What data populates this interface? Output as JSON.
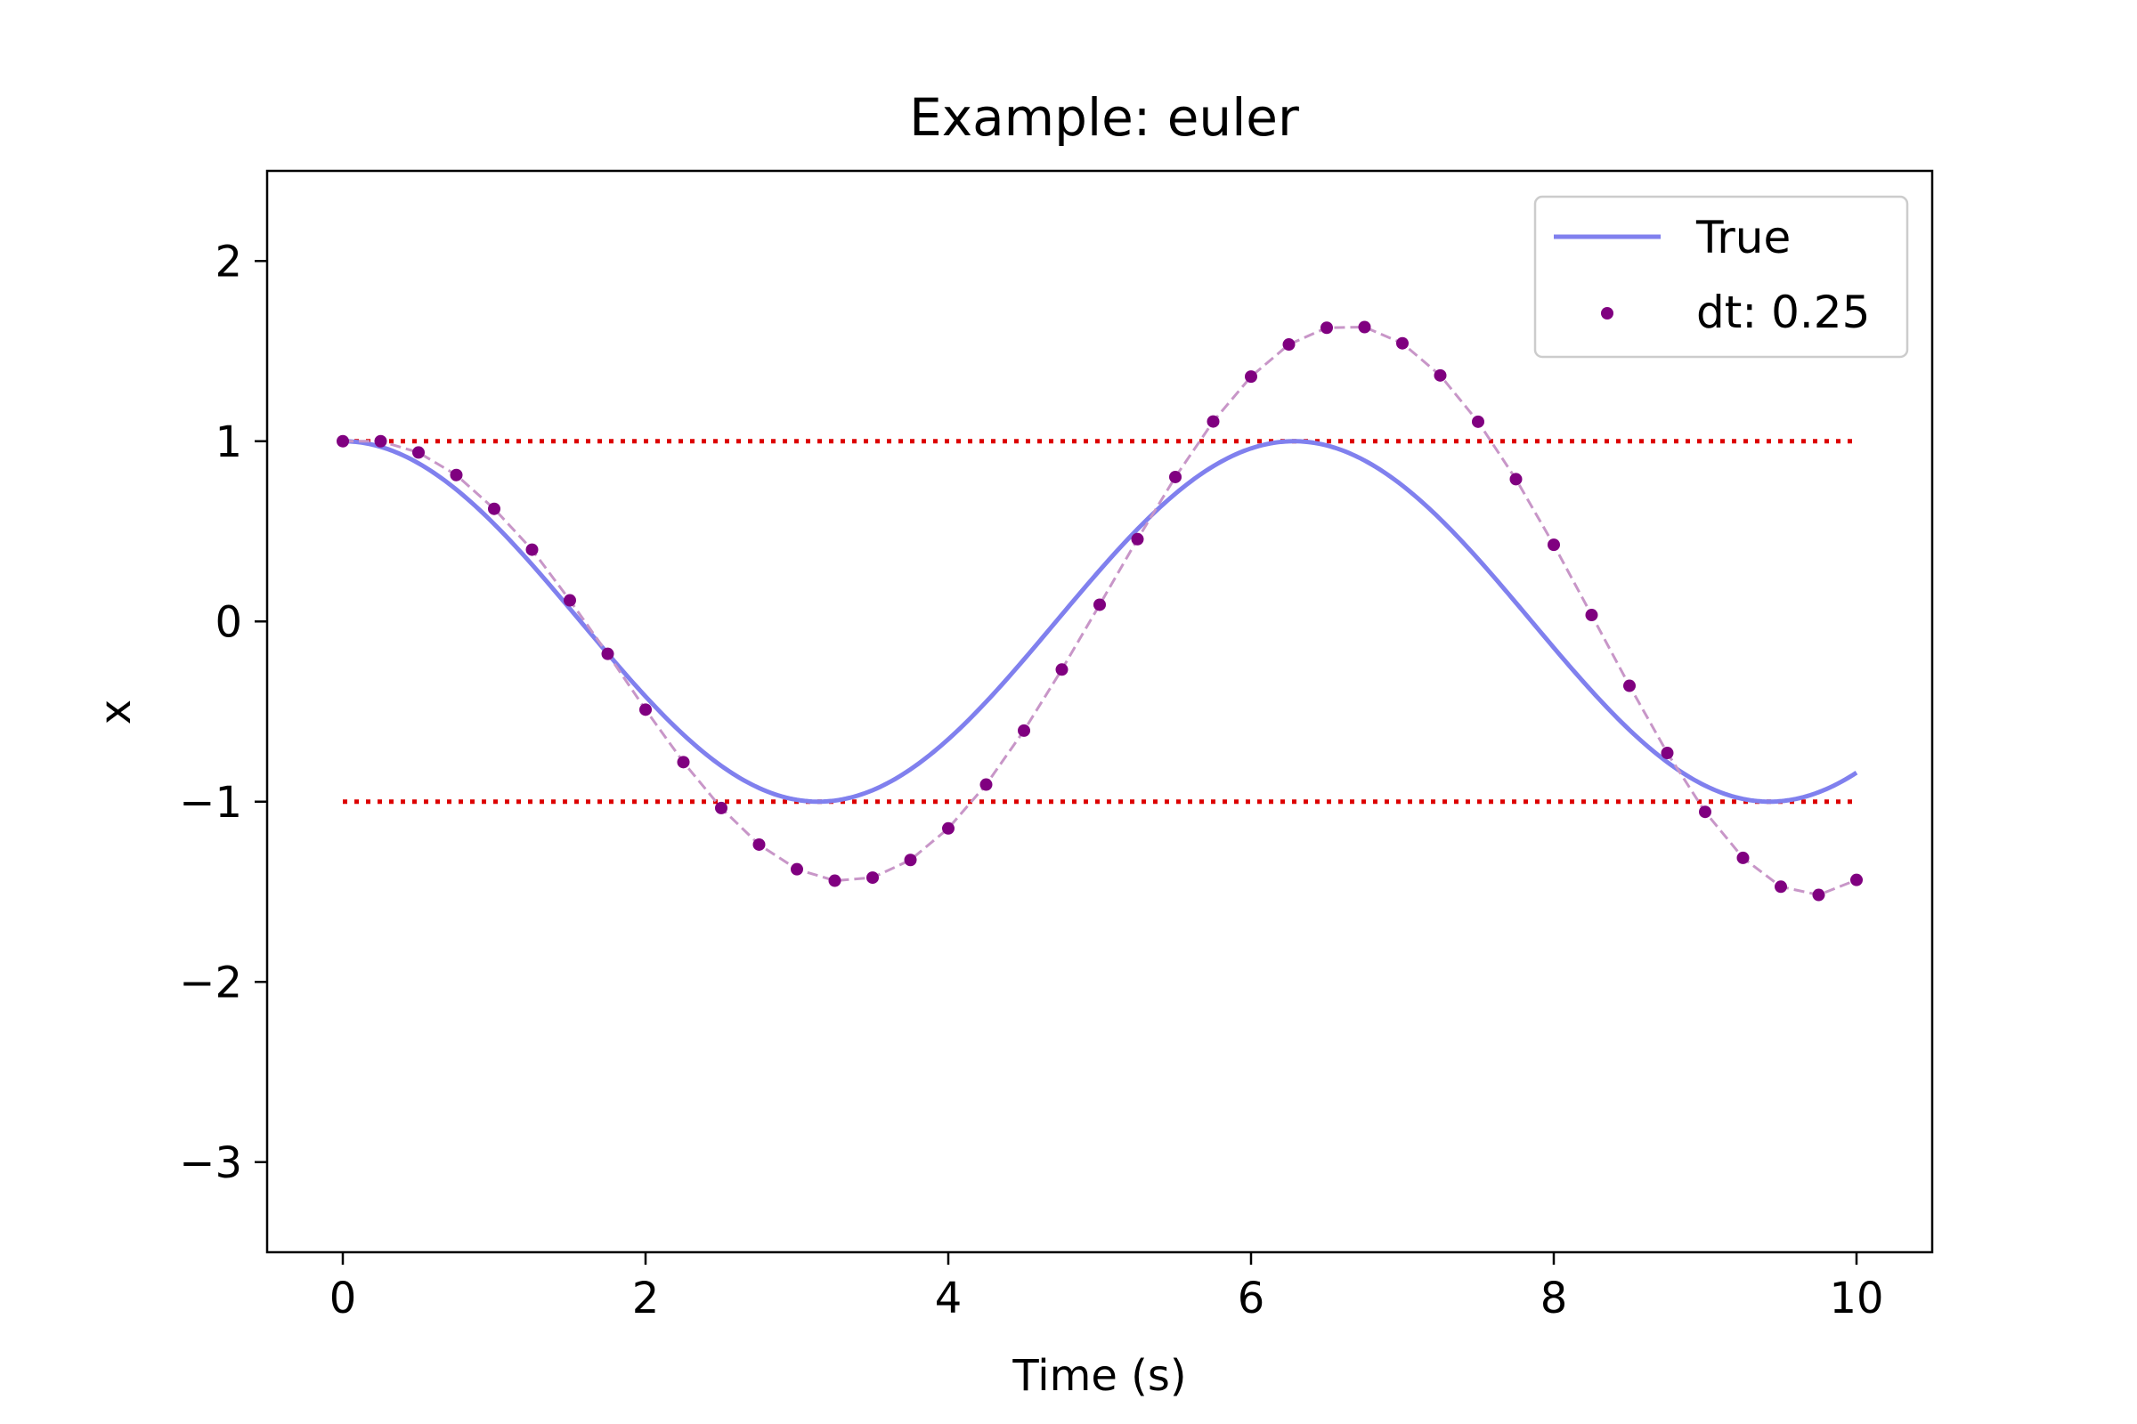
{
  "chart_data": {
    "type": "line",
    "title": "Example: euler",
    "xlabel": "Time (s)",
    "ylabel": "x",
    "xlim": [
      -0.5,
      10.5
    ],
    "ylim": [
      -3.5,
      2.5
    ],
    "xticks": [
      0,
      2,
      4,
      6,
      8,
      10
    ],
    "yticks": [
      -3,
      -2,
      -1,
      0,
      1,
      2
    ],
    "xtick_labels": [
      "0",
      "2",
      "4",
      "6",
      "8",
      "10"
    ],
    "ytick_labels": [
      "−3",
      "−2",
      "−1",
      "0",
      "1",
      "2"
    ],
    "grid": false,
    "legend": {
      "position": "top-right",
      "entries": [
        "True",
        "dt: 0.25"
      ]
    },
    "series": [
      {
        "name": "True",
        "style": "solid line",
        "color": "#8080ee",
        "function": "cos(t)",
        "x_range": [
          0,
          10
        ]
      },
      {
        "name": "dt: 0.25",
        "style": "markers + dashed line",
        "color": "#800080",
        "line_color": "#c896c8",
        "x": [
          0,
          0.25,
          0.5,
          0.75,
          1.0,
          1.25,
          1.5,
          1.75,
          2.0,
          2.25,
          2.5,
          2.75,
          3.0,
          3.25,
          3.5,
          3.75,
          4.0,
          4.25,
          4.5,
          4.75,
          5.0,
          5.25,
          5.5,
          5.75,
          6.0,
          6.25,
          6.5,
          6.75,
          7.0,
          7.25,
          7.5,
          7.75,
          8.0,
          8.25,
          8.5,
          8.75,
          9.0,
          9.25,
          9.5,
          9.75,
          10.0
        ],
        "values": [
          1.0,
          1.0,
          0.9375,
          0.8125,
          0.625,
          0.3984,
          0.1172,
          -0.1797,
          -0.4893,
          -0.7808,
          -1.0352,
          -1.2382,
          -1.3749,
          -1.4385,
          -1.4215,
          -1.3235,
          -1.1483,
          -0.905,
          -0.6056,
          -0.2669,
          0.0927,
          0.4565,
          0.8014,
          1.1094,
          1.3587,
          1.5368,
          1.6296,
          1.6333,
          1.5433,
          1.3651,
          1.1081,
          0.7893,
          0.4253,
          0.0356,
          -0.357,
          -0.7297,
          -1.0566,
          -1.3118,
          -1.4719,
          -1.5174,
          -1.4342
        ]
      }
    ],
    "reference_lines": [
      {
        "y": 1,
        "style": "dotted",
        "color": "#dd0000",
        "x_range": [
          0,
          10
        ]
      },
      {
        "y": -1,
        "style": "dotted",
        "color": "#dd0000",
        "x_range": [
          0,
          10
        ]
      }
    ]
  }
}
